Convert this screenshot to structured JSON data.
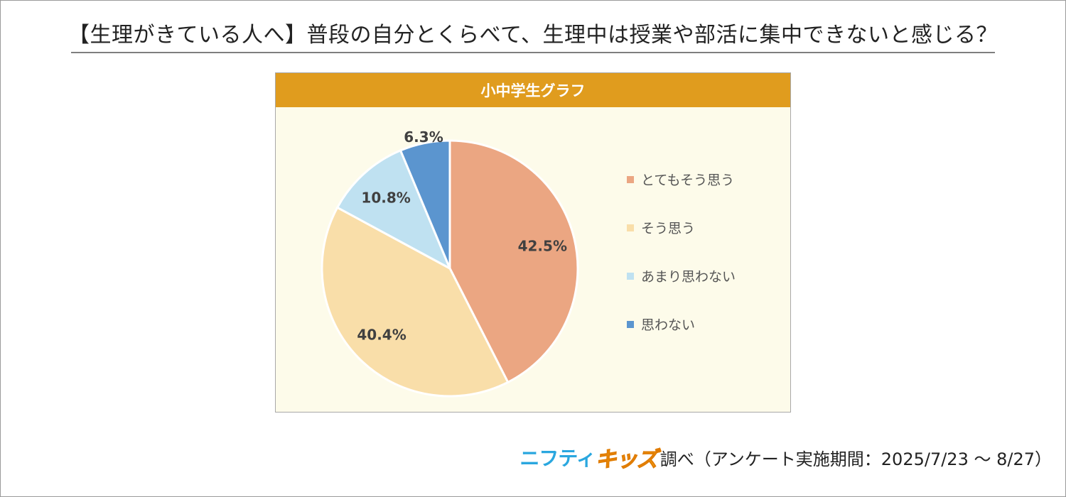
{
  "title": "【生理がきている人へ】普段の自分とくらべて、生理中は授業や部活に集中できないと感じる？",
  "chart_data": {
    "type": "pie",
    "title": "小中学生グラフ",
    "categories": [
      "とてもそう思う",
      "そう思う",
      "あまり思わない",
      "思わない"
    ],
    "values": [
      42.5,
      40.4,
      10.8,
      6.3
    ],
    "labels": [
      "42.5%",
      "40.4%",
      "10.8%",
      "6.3%"
    ],
    "colors": [
      "#eba682",
      "#f9dea9",
      "#bfe1f1",
      "#5b95cf"
    ],
    "legend_position": "right",
    "start": "top",
    "direction": "clockwise"
  },
  "source": {
    "logo_part1": "ニフティ",
    "logo_part2": "キッズ",
    "text": "調べ（アンケート実施期間：2025/7/23 ～ 8/27）"
  }
}
